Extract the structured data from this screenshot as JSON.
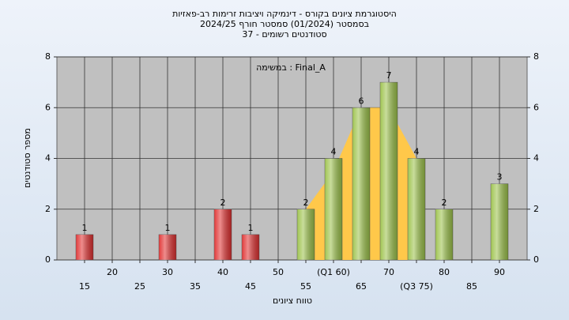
{
  "chart_data": {
    "type": "bar",
    "title": [
      "היסטוגרמת ציונים בקורס - דינמיקה ויציבות זרימות רב-פאזיות",
      "בסמסטר (01/2024) סמסטר חורף 2024/25",
      "סטודנטים רשומים - 37"
    ],
    "annotation": "במשימה : Final_A",
    "y_label": "מספר סטודנטים",
    "x_label": "טווח ציונים",
    "x": [
      15,
      30,
      40,
      45,
      55,
      60,
      65,
      70,
      75,
      80,
      90
    ],
    "values": [
      1,
      1,
      2,
      1,
      2,
      4,
      6,
      7,
      4,
      2,
      3
    ],
    "colors": [
      "#e03030",
      "#e03030",
      "#e03030",
      "#e03030",
      "#9cc24a",
      "#9cc24a",
      "#9cc24a",
      "#9cc24a",
      "#9cc24a",
      "#9cc24a",
      "#9cc24a"
    ],
    "area": {
      "x": [
        55,
        60,
        65,
        70,
        75
      ],
      "values": [
        2,
        3.5,
        6,
        6,
        4
      ],
      "color": "#ffc84a"
    },
    "xlim": [
      10,
      95
    ],
    "xticks": [
      15,
      20,
      25,
      30,
      35,
      40,
      45,
      50,
      55,
      {
        "value": 60,
        "label": "(Q1 60)"
      },
      65,
      70,
      {
        "value": 75,
        "label": "(Q3 75)"
      },
      80,
      85,
      90
    ],
    "ylim": [
      0,
      8
    ],
    "yticks": [
      0,
      2,
      4,
      6,
      8
    ],
    "grid": true
  }
}
